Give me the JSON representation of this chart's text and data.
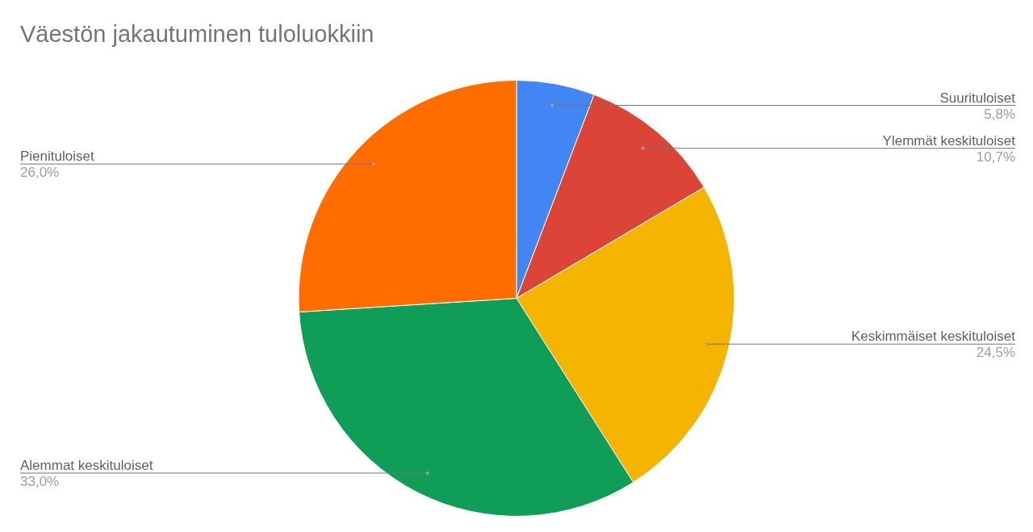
{
  "chart_data": {
    "type": "pie",
    "title": "Väestön jakautuminen tuloluokkiin",
    "categories": [
      "Suurituloiset",
      "Ylemmät keskituloiset",
      "Keskimmäiset keskituloiset",
      "Alemmat keskituloiset",
      "Pienituloiset"
    ],
    "values": [
      5.8,
      10.7,
      24.5,
      33.0,
      26.0
    ],
    "colors": [
      "#4285f4",
      "#db4437",
      "#f4b400",
      "#0f9d58",
      "#ff6d01"
    ],
    "value_labels": [
      "5,8%",
      "10,7%",
      "24,5%",
      "33,0%",
      "26,0%"
    ],
    "legend": false
  }
}
